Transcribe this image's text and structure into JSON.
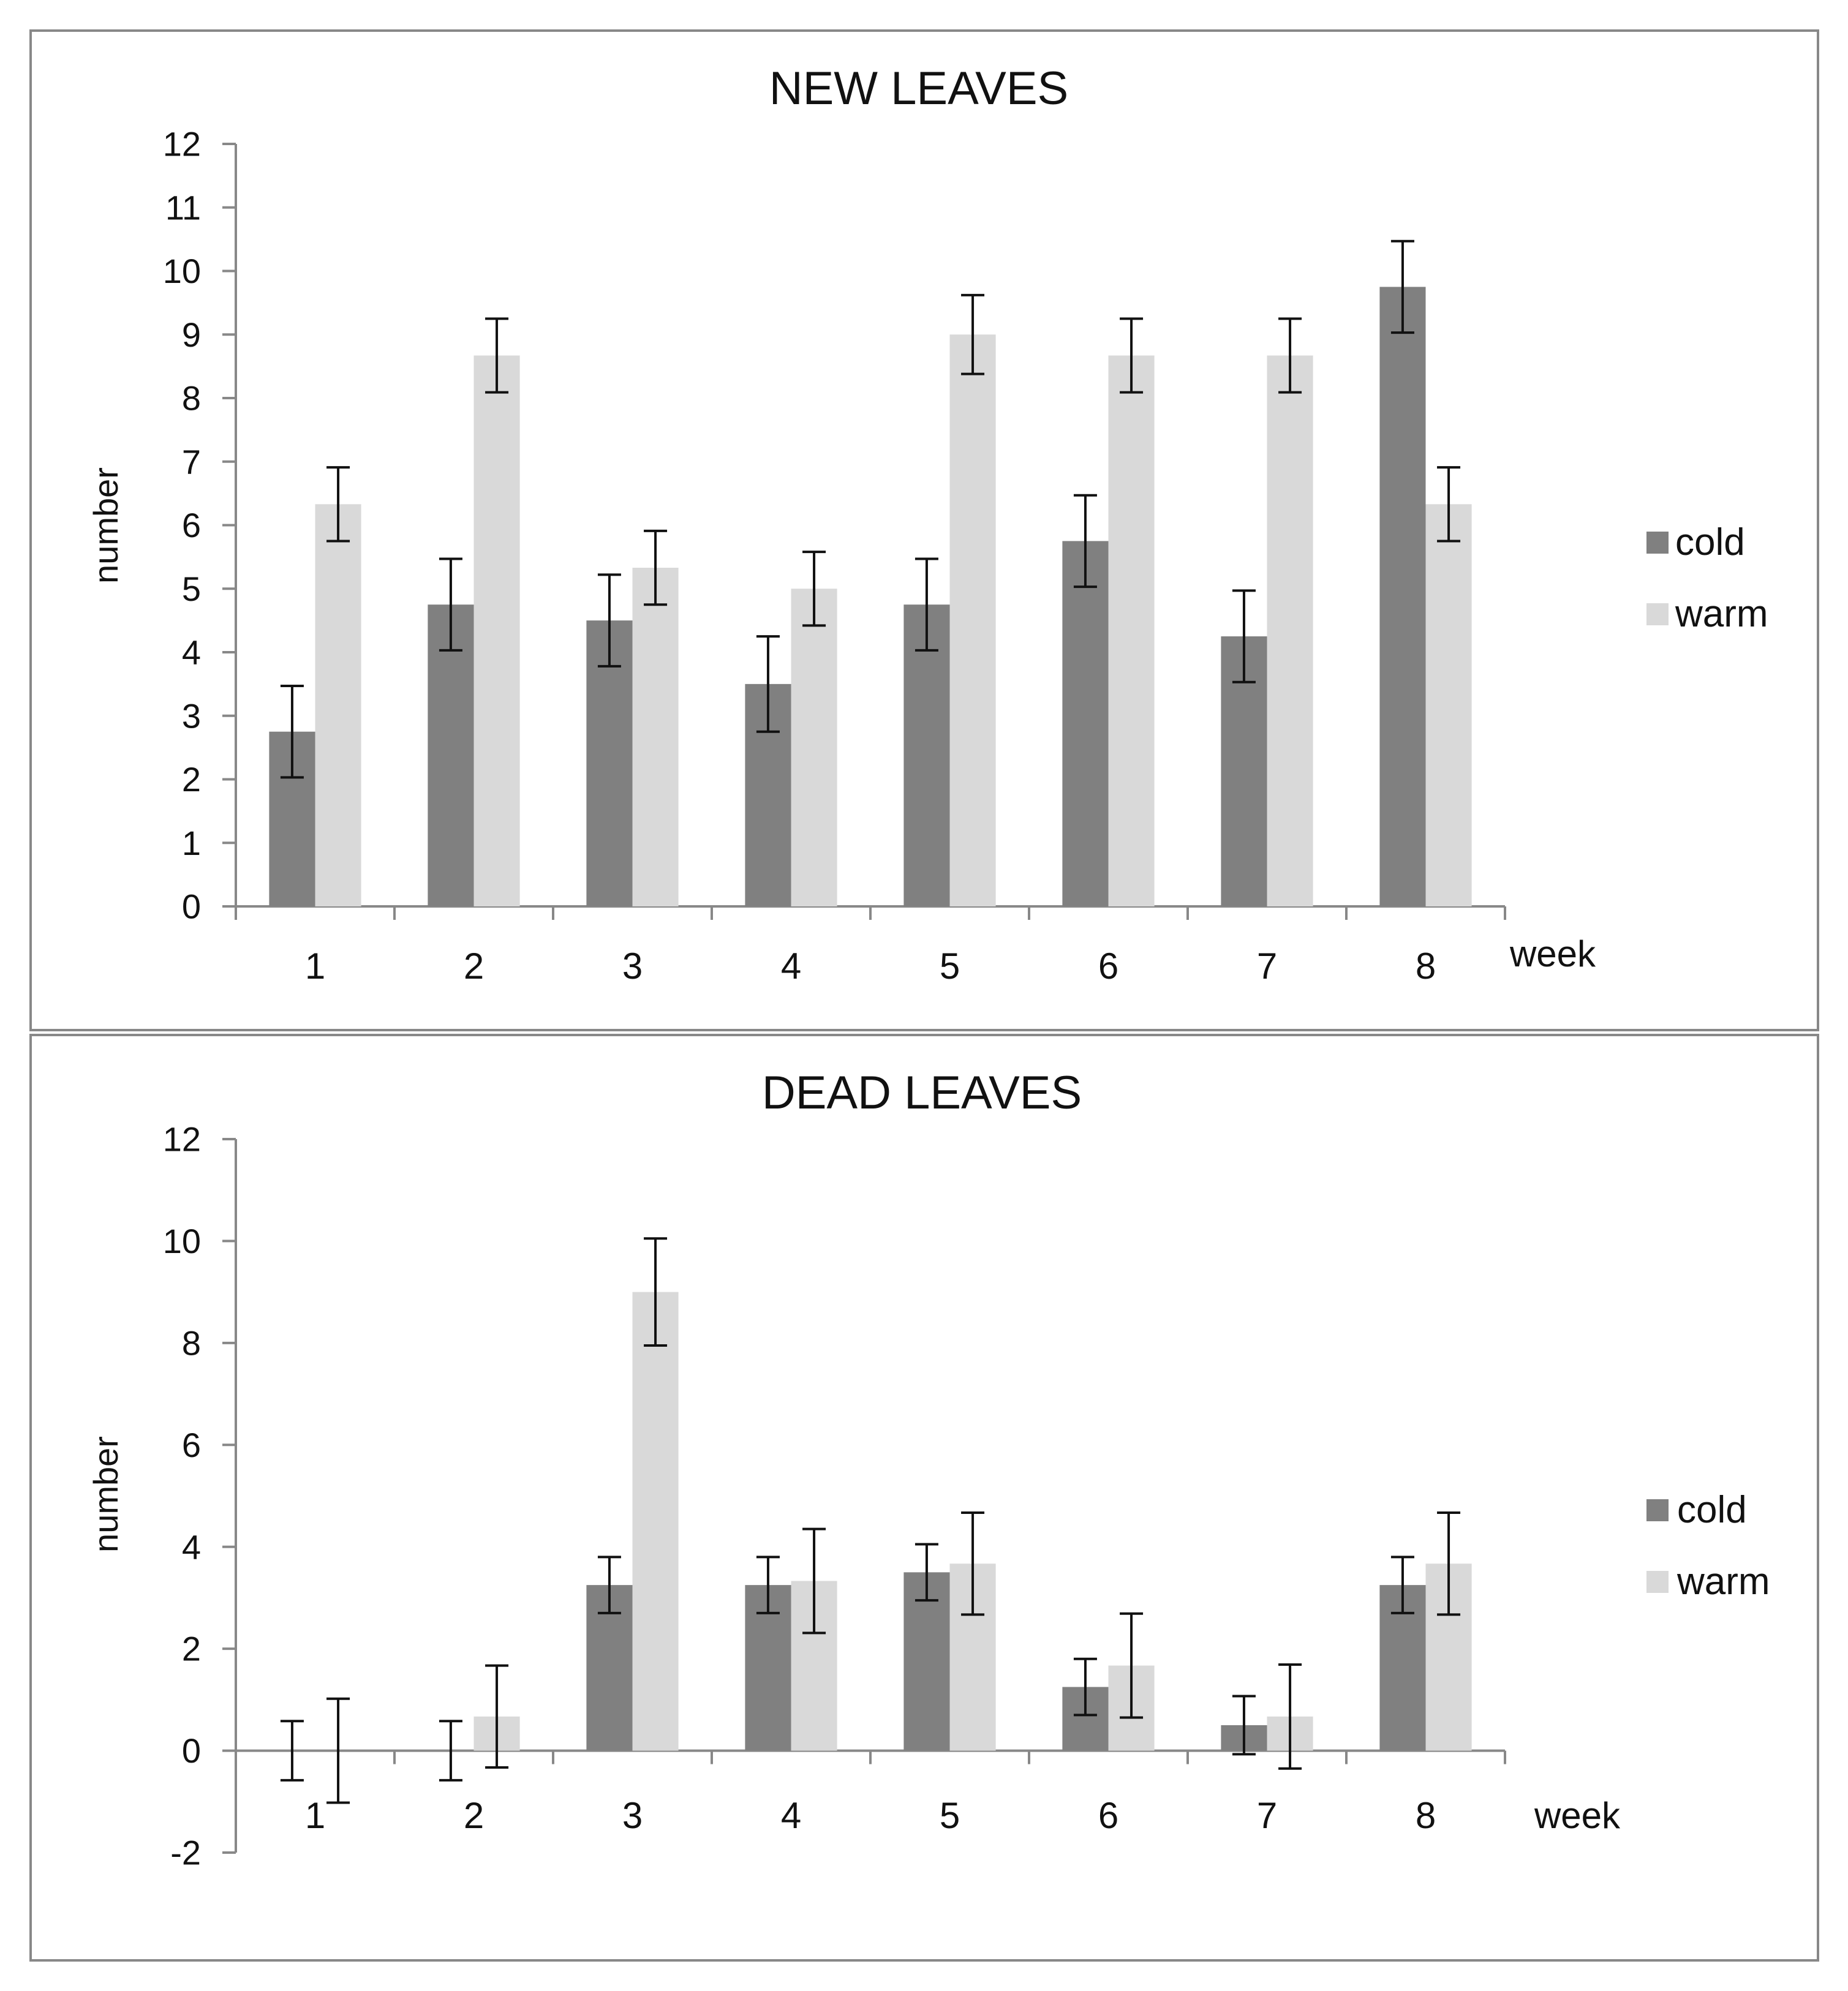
{
  "colors": {
    "cold": "#808080",
    "warm": "#d9d9d9",
    "axis": "#888888",
    "frame": "#888888",
    "error": "#111111"
  },
  "chart_data": [
    {
      "type": "bar",
      "title": "NEW LEAVES",
      "xlabel": "week",
      "ylabel": "number",
      "ylim": [
        0,
        12
      ],
      "yticks": [
        0,
        1,
        2,
        3,
        4,
        5,
        6,
        7,
        8,
        9,
        10,
        11,
        12
      ],
      "categories": [
        "1",
        "2",
        "3",
        "4",
        "5",
        "6",
        "7",
        "8"
      ],
      "legend": {
        "position": "right",
        "entries": [
          "cold",
          "warm"
        ]
      },
      "series": [
        {
          "name": "cold",
          "color_key": "cold",
          "values": [
            2.75,
            4.75,
            4.5,
            3.5,
            4.75,
            5.75,
            4.25,
            9.75
          ],
          "errors": [
            0.72,
            0.72,
            0.72,
            0.75,
            0.72,
            0.72,
            0.72,
            0.72
          ]
        },
        {
          "name": "warm",
          "color_key": "warm",
          "values": [
            6.33,
            8.67,
            5.33,
            5.0,
            9.0,
            8.67,
            8.67,
            6.33
          ],
          "errors": [
            0.58,
            0.58,
            0.58,
            0.58,
            0.62,
            0.58,
            0.58,
            0.58
          ]
        }
      ]
    },
    {
      "type": "bar",
      "title": "DEAD LEAVES",
      "xlabel": "week",
      "ylabel": "number",
      "ylim": [
        -2,
        12
      ],
      "yticks": [
        -2,
        0,
        2,
        4,
        6,
        8,
        10,
        12
      ],
      "categories": [
        "1",
        "2",
        "3",
        "4",
        "5",
        "6",
        "7",
        "8"
      ],
      "legend": {
        "position": "right",
        "entries": [
          "cold",
          "warm"
        ]
      },
      "series": [
        {
          "name": "cold",
          "color_key": "cold",
          "values": [
            0,
            0,
            3.25,
            3.25,
            3.5,
            1.25,
            0.5,
            3.25
          ],
          "errors": [
            0.58,
            0.58,
            0.55,
            0.55,
            0.55,
            0.55,
            0.57,
            0.55
          ]
        },
        {
          "name": "warm",
          "color_key": "warm",
          "values": [
            0,
            0.67,
            9.0,
            3.33,
            3.67,
            1.67,
            0.67,
            3.67
          ],
          "errors": [
            1.02,
            1.0,
            1.05,
            1.02,
            1.0,
            1.02,
            1.02,
            1.0
          ]
        }
      ]
    }
  ]
}
